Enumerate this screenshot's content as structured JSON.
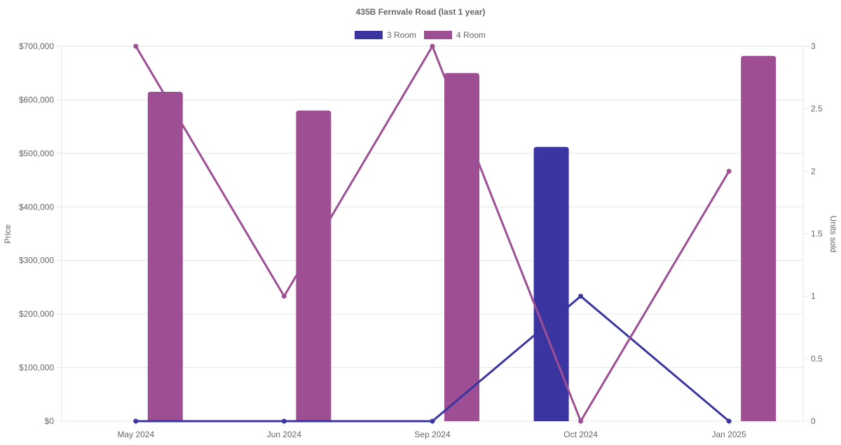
{
  "chart_data": {
    "type": "bar",
    "title": "435B Fernvale Road (last 1 year)",
    "categories": [
      "May 2024",
      "Jun 2024",
      "Sep 2024",
      "Oct 2024",
      "Jan 2025"
    ],
    "ylabel": "Price",
    "y2label": "Units sold",
    "ylim": [
      0,
      700000
    ],
    "y2lim": [
      0,
      3
    ],
    "yticks": [
      "$0",
      "$100,000",
      "$200,000",
      "$300,000",
      "$400,000",
      "$500,000",
      "$600,000",
      "$700,000"
    ],
    "y2ticks": [
      "0",
      "0.5",
      "1",
      "1.5",
      "2",
      "2.5",
      "3"
    ],
    "grid": true,
    "legend_position": "top",
    "series": [
      {
        "name": "3 Room",
        "color": "#3a35a0",
        "price": [
          null,
          null,
          null,
          512000,
          null
        ],
        "units": [
          0,
          0,
          0,
          1,
          0
        ]
      },
      {
        "name": "4 Room",
        "color": "#9e4f93",
        "price": [
          615000,
          580000,
          650000,
          null,
          682000
        ],
        "units": [
          3,
          1,
          3,
          0,
          2
        ]
      }
    ]
  }
}
